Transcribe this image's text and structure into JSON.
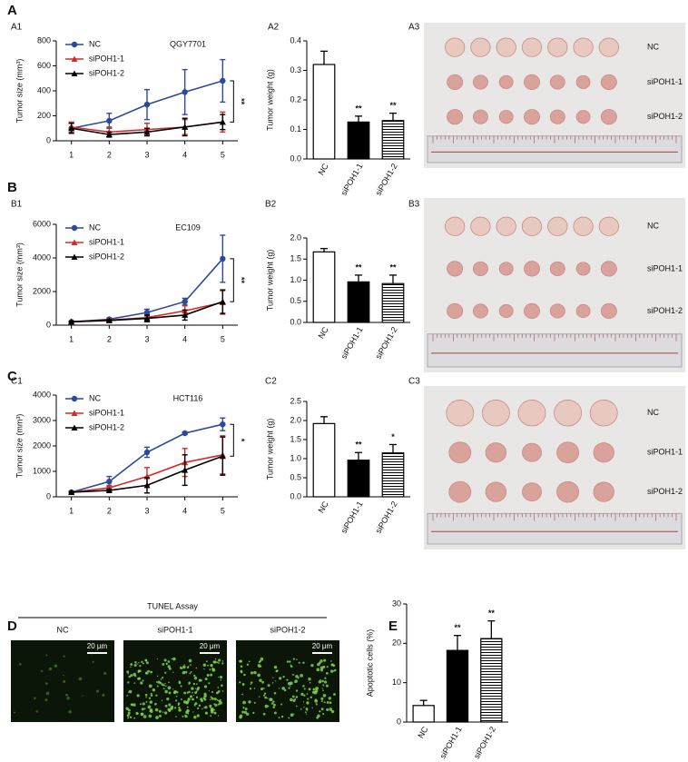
{
  "panel_letters": [
    "A",
    "B",
    "C",
    "D",
    "E"
  ],
  "chart_data": [
    {
      "panel": "A1",
      "type": "line",
      "title": "QGY7701",
      "ylabel": "Tumor size (mm³)",
      "x": [
        1,
        2,
        3,
        4,
        5
      ],
      "xlim": [
        0.6,
        5.4
      ],
      "xticks": [
        1,
        2,
        3,
        4,
        5
      ],
      "ylim": [
        0,
        800
      ],
      "yticks": [
        0,
        200,
        400,
        600,
        800
      ],
      "significance": "**",
      "series": [
        {
          "name": "NC",
          "color": "#2b4a9b",
          "marker": "circle",
          "values": [
            100,
            160,
            290,
            390,
            480
          ],
          "errors": [
            40,
            60,
            120,
            180,
            170
          ]
        },
        {
          "name": "siPOH1-1",
          "color": "#d42a2a",
          "marker": "triangle",
          "values": [
            110,
            70,
            90,
            110,
            150
          ],
          "errors": [
            40,
            40,
            50,
            60,
            80
          ]
        },
        {
          "name": "siPOH1-2",
          "color": "#000000",
          "marker": "triangle",
          "values": [
            100,
            50,
            70,
            110,
            150
          ],
          "errors": [
            40,
            20,
            30,
            70,
            60
          ]
        }
      ]
    },
    {
      "panel": "A2",
      "type": "bar",
      "ylabel": "Tumor weight (g)",
      "categories": [
        "NC",
        "siPOH1-1",
        "siPOH1-2"
      ],
      "values": [
        0.32,
        0.125,
        0.13
      ],
      "errors": [
        0.045,
        0.02,
        0.025
      ],
      "colors": [
        "#ffffff",
        "#000000",
        "#ffffff"
      ],
      "hatch": [
        false,
        false,
        true
      ],
      "significance": [
        null,
        "**",
        "**"
      ],
      "ylim": [
        0,
        0.4
      ],
      "yticks": [
        {
          "value": 0,
          "label": "0.0"
        },
        0.1,
        0.2,
        0.3,
        0.4
      ]
    },
    {
      "panel": "B1",
      "type": "line",
      "title": "EC109",
      "ylabel": "Tumor size (mm³)",
      "x": [
        1,
        2,
        3,
        4,
        5
      ],
      "xlim": [
        0.6,
        5.4
      ],
      "xticks": [
        1,
        2,
        3,
        4,
        5
      ],
      "ylim": [
        0,
        6000
      ],
      "yticks": [
        0,
        2000,
        4000,
        6000
      ],
      "significance": "**",
      "series": [
        {
          "name": "NC",
          "color": "#2b4a9b",
          "marker": "circle",
          "values": [
            200,
            350,
            750,
            1400,
            3950
          ],
          "errors": [
            30,
            80,
            200,
            200,
            1400
          ]
        },
        {
          "name": "siPOH1-1",
          "color": "#d42a2a",
          "marker": "triangle",
          "values": [
            200,
            300,
            450,
            850,
            1350
          ],
          "errors": [
            30,
            60,
            150,
            300,
            700
          ]
        },
        {
          "name": "siPOH1-2",
          "color": "#000000",
          "marker": "triangle",
          "values": [
            200,
            280,
            400,
            600,
            1400
          ],
          "errors": [
            30,
            50,
            200,
            300,
            700
          ]
        }
      ]
    },
    {
      "panel": "B2",
      "type": "bar",
      "ylabel": "Tumor weight (g)",
      "categories": [
        "NC",
        "siPOH1-1",
        "siPOH1-2"
      ],
      "values": [
        1.67,
        0.96,
        0.92
      ],
      "errors": [
        0.08,
        0.16,
        0.2
      ],
      "colors": [
        "#ffffff",
        "#000000",
        "#ffffff"
      ],
      "hatch": [
        false,
        false,
        true
      ],
      "significance": [
        null,
        "**",
        "**"
      ],
      "ylim": [
        0,
        2
      ],
      "yticks": [
        {
          "value": 0,
          "label": "0.0"
        },
        0.5,
        {
          "value": 1,
          "label": "1.0"
        },
        1.5,
        {
          "value": 2,
          "label": "2.0"
        }
      ]
    },
    {
      "panel": "C1",
      "type": "line",
      "title": "HCT116",
      "ylabel": "Tumor size (mm³)",
      "x": [
        1,
        2,
        3,
        4,
        5
      ],
      "xlim": [
        0.6,
        5.4
      ],
      "xticks": [
        1,
        2,
        3,
        4,
        5
      ],
      "ylim": [
        0,
        4000
      ],
      "yticks": [
        0,
        1000,
        2000,
        3000,
        4000
      ],
      "significance": "*",
      "series": [
        {
          "name": "NC",
          "color": "#2b4a9b",
          "marker": "circle",
          "values": [
            180,
            600,
            1750,
            2500,
            2850
          ],
          "errors": [
            30,
            200,
            200,
            50,
            250
          ]
        },
        {
          "name": "siPOH1-1",
          "color": "#d42a2a",
          "marker": "triangle",
          "values": [
            180,
            350,
            800,
            1350,
            1650
          ],
          "errors": [
            30,
            100,
            350,
            550,
            750
          ]
        },
        {
          "name": "siPOH1-2",
          "color": "#000000",
          "marker": "triangle",
          "values": [
            180,
            250,
            450,
            1050,
            1600
          ],
          "errors": [
            30,
            50,
            300,
            600,
            750
          ]
        }
      ]
    },
    {
      "panel": "C2",
      "type": "bar",
      "ylabel": "Tumor weight (g)",
      "categories": [
        "NC",
        "siPOH1-1",
        "siPOH1-2"
      ],
      "values": [
        1.92,
        0.96,
        1.15
      ],
      "errors": [
        0.18,
        0.2,
        0.22
      ],
      "colors": [
        "#ffffff",
        "#000000",
        "#ffffff"
      ],
      "hatch": [
        false,
        false,
        true
      ],
      "significance": [
        null,
        "**",
        "*"
      ],
      "ylim": [
        0,
        2.5
      ],
      "yticks": [
        {
          "value": 0,
          "label": "0.0"
        },
        0.5,
        {
          "value": 1,
          "label": "1.0"
        },
        1.5,
        {
          "value": 2,
          "label": "2.0"
        },
        2.5
      ]
    },
    {
      "panel": "E",
      "type": "bar",
      "ylabel": "Apoptotic cells (%)",
      "categories": [
        "NC",
        "siPOH1-1",
        "siPOH1-2"
      ],
      "values": [
        4.2,
        18.2,
        21.2
      ],
      "errors": [
        1.3,
        3.8,
        4.5
      ],
      "colors": [
        "#ffffff",
        "#000000",
        "#ffffff"
      ],
      "hatch": [
        false,
        false,
        true
      ],
      "significance": [
        null,
        "**",
        "**"
      ],
      "ylim": [
        0,
        30
      ],
      "yticks": [
        0,
        10,
        20,
        30
      ]
    }
  ],
  "photos": [
    {
      "panel": "A3",
      "groups": [
        "NC",
        "siPOH1-1",
        "siPOH1-2"
      ]
    },
    {
      "panel": "B3",
      "groups": [
        "NC",
        "siPOH1-1",
        "siPOH1-2"
      ]
    },
    {
      "panel": "C3",
      "groups": [
        "NC",
        "siPOH1-1",
        "siPOH1-2"
      ]
    }
  ],
  "tunel": {
    "title": "TUNEL Assay",
    "groups": [
      "NC",
      "siPOH1-1",
      "siPOH1-2"
    ],
    "scale_bar": "20 μm"
  }
}
